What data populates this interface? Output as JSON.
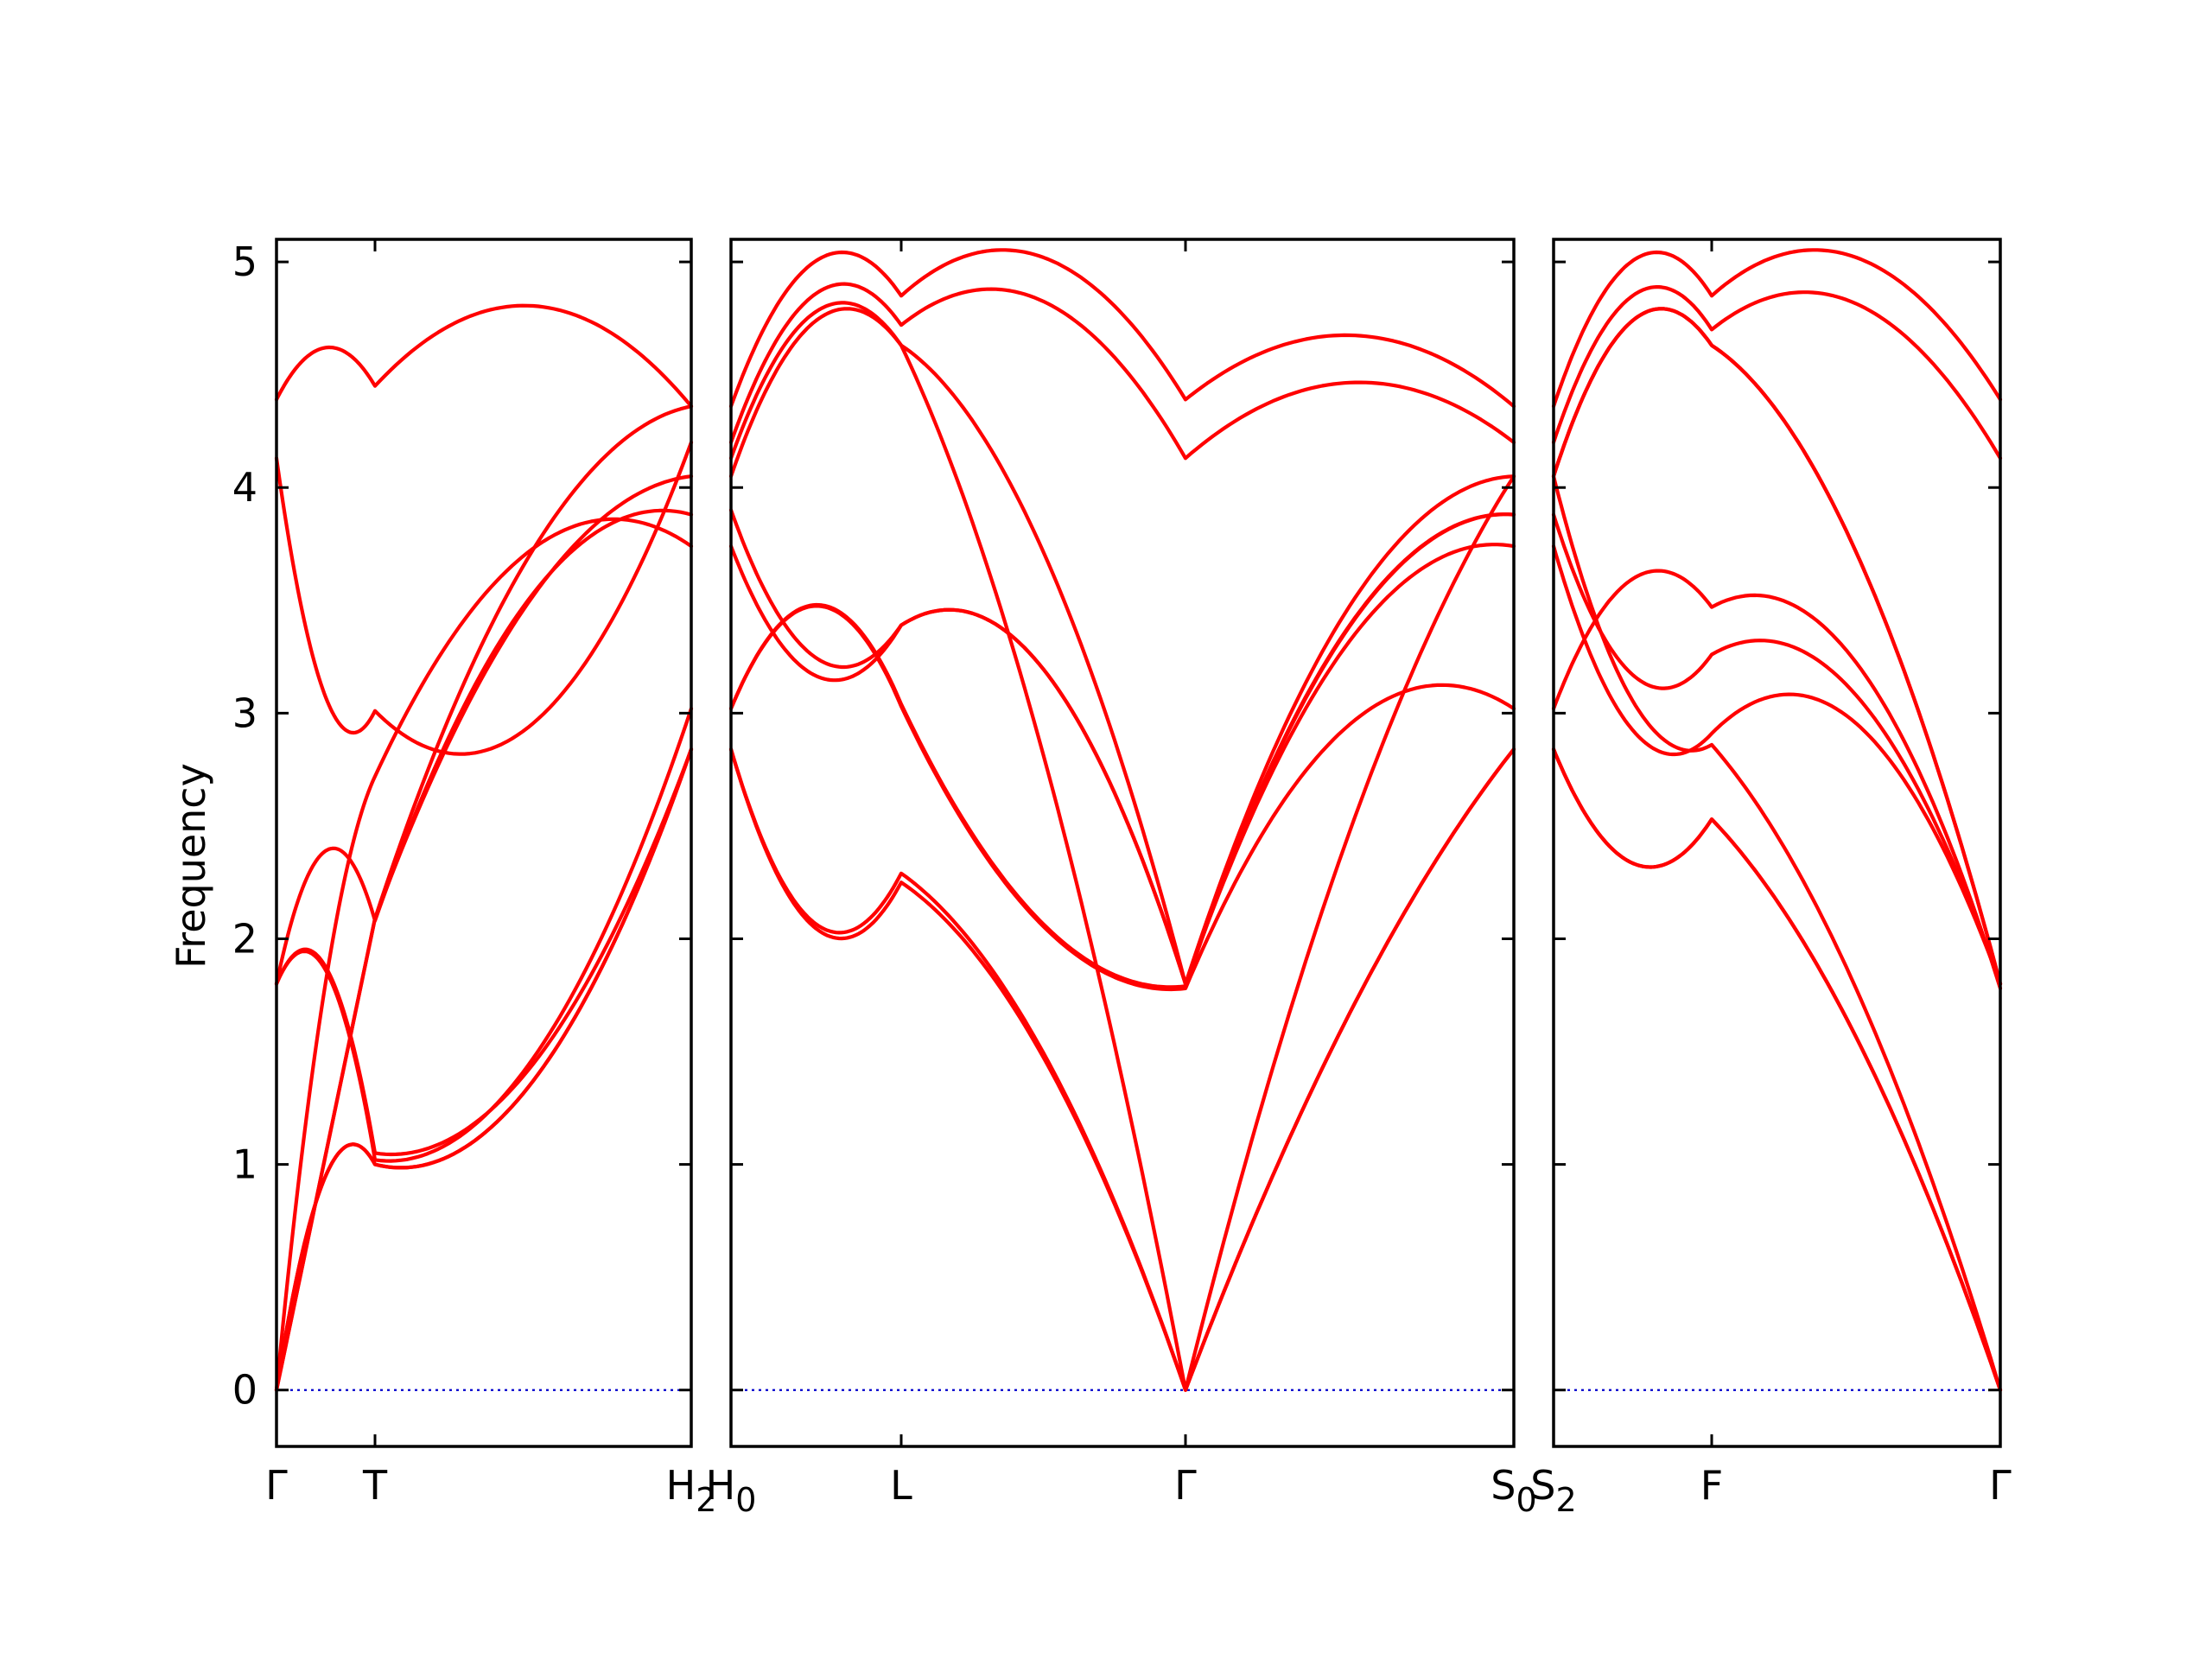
{
  "chart_data": {
    "type": "line",
    "ylabel": "Frequency",
    "ylim": [
      -0.25,
      5.1
    ],
    "yticks": [
      "0",
      "1",
      "2",
      "3",
      "4",
      "5"
    ],
    "band_color": "#ff0000",
    "zero_line_color": "#0000cc",
    "grid": false,
    "legend": "none",
    "panels": [
      {
        "segments": [
          "Γ-T",
          "T-H2"
        ],
        "xticks": [
          "Γ",
          "T",
          "H2"
        ],
        "bands": [
          {
            "nodes": [
              0,
              1,
              2
            ],
            "values": [
              [
                0.0,
                1.0,
                2.84
              ],
              [
                0.0,
                1.0,
                2.84
              ]
            ],
            "shapes": [
              [
                0.45,
                -0.55
              ],
              [
                0.45,
                -0.55
              ]
            ]
          },
          {
            "nodes": [
              0,
              1,
              2
            ],
            "values": [
              [
                0.0,
                2.72,
                3.74
              ],
              [
                1.8,
                1.05,
                2.84
              ]
            ],
            "shapes": [
              [
                0.45,
                0.5
              ],
              [
                0.45,
                -0.5
              ]
            ]
          },
          {
            "nodes": [
              0,
              1,
              2
            ],
            "values": [
              [
                1.8,
                2.08,
                3.88
              ],
              [
                1.8,
                1.02,
                3.02
              ]
            ],
            "shapes": [
              [
                0.45,
                0.55
              ],
              [
                0.45,
                -0.55
              ]
            ]
          },
          {
            "nodes": [
              0,
              1,
              2
            ],
            "values": [
              [
                4.13,
                3.01,
                4.2
              ],
              [
                4.39,
                4.45,
                4.36
              ]
            ],
            "shapes": [
              [
                -0.5,
                -0.65
              ],
              [
                0.2,
                0.4
              ]
            ]
          },
          {
            "nodes": [
              0,
              1,
              2
            ],
            "values": [
              [
                0.0,
                2.09,
                4.36
              ],
              [
                0.0,
                2.09,
                4.05
              ]
            ],
            "shapes": [
              [
                0.0,
                0.5
              ],
              [
                0.0,
                0.45
              ]
            ]
          }
        ]
      },
      {
        "segments": [
          "H0-L",
          "L-Γ",
          "Γ-S0"
        ],
        "xticks": [
          "H0",
          "L",
          "Γ",
          "S0"
        ],
        "bands": [
          {
            "nodes": [
              0,
              1,
              2,
              3
            ],
            "values": [
              [
                2.84,
                2.25,
                0.0,
                2.84
              ],
              [
                2.84,
                2.29,
                0.0,
                2.84
              ]
            ],
            "shapes": [
              [
                -0.5,
                0.35,
                0.25
              ],
              [
                -0.5,
                0.35,
                0.25
              ]
            ]
          },
          {
            "nodes": [
              0,
              1,
              2,
              3
            ],
            "values": [
              [
                3.02,
                3.03,
                1.78,
                3.02
              ],
              [
                3.74,
                3.39,
                1.8,
                3.74
              ]
            ],
            "shapes": [
              [
                0.45,
                -0.35,
                0.55
              ],
              [
                -0.4,
                0.6,
                0.55
              ]
            ]
          },
          {
            "nodes": [
              0,
              1,
              2,
              3
            ],
            "values": [
              [
                3.02,
                3.04,
                1.79,
                3.88
              ],
              [
                3.9,
                3.39,
                1.8,
                3.88
              ]
            ],
            "shapes": [
              [
                0.45,
                -0.35,
                0.55
              ],
              [
                -0.4,
                0.6,
                0.55
              ]
            ]
          },
          {
            "nodes": [
              0,
              1,
              2,
              3
            ],
            "values": [
              [
                4.2,
                4.72,
                4.13,
                4.2
              ],
              [
                4.36,
                4.85,
                4.39,
                4.36
              ]
            ],
            "shapes": [
              [
                0.4,
                0.4,
                0.3
              ],
              [
                0.4,
                0.4,
                0.3
              ]
            ]
          },
          {
            "nodes": [
              0,
              1,
              2,
              3
            ],
            "values": [
              [
                4.05,
                4.63,
                1.8,
                4.05
              ],
              [
                4.13,
                4.63,
                0.0,
                4.05
              ]
            ],
            "shapes": [
              [
                0.4,
                0.5,
                0.55
              ],
              [
                0.4,
                0.5,
                0.45
              ]
            ]
          }
        ]
      },
      {
        "segments": [
          "S2-F",
          "F-Γ"
        ],
        "xticks": [
          "S2",
          "F",
          "Γ"
        ],
        "bands": [
          {
            "nodes": [
              0,
              1,
              2
            ],
            "values": [
              [
                2.84,
                2.53,
                0.0
              ],
              [
                2.84,
                2.53,
                0.0
              ]
            ],
            "shapes": [
              [
                -0.35,
                0.3
              ],
              [
                -0.35,
                0.3
              ]
            ]
          },
          {
            "nodes": [
              0,
              1,
              2
            ],
            "values": [
              [
                3.74,
                2.91,
                1.8
              ],
              [
                3.02,
                3.47,
                1.78
              ]
            ],
            "shapes": [
              [
                -0.4,
                0.6
              ],
              [
                0.35,
                0.6
              ]
            ]
          },
          {
            "nodes": [
              0,
              1,
              2
            ],
            "values": [
              [
                3.88,
                3.26,
                1.8
              ],
              [
                4.05,
                2.86,
                0.0
              ]
            ],
            "shapes": [
              [
                -0.4,
                0.55
              ],
              [
                -0.4,
                0.35
              ]
            ]
          },
          {
            "nodes": [
              0,
              1,
              2
            ],
            "values": [
              [
                4.2,
                4.7,
                4.13
              ],
              [
                4.36,
                4.85,
                4.39
              ]
            ],
            "shapes": [
              [
                0.4,
                0.4
              ],
              [
                0.4,
                0.4
              ]
            ]
          },
          {
            "nodes": [
              0,
              1,
              2
            ],
            "values": [
              [
                4.05,
                4.63,
                1.8
              ],
              [
                4.05,
                4.63,
                1.8
              ]
            ],
            "shapes": [
              [
                0.4,
                0.5
              ],
              [
                0.4,
                0.5
              ]
            ]
          }
        ]
      }
    ]
  }
}
